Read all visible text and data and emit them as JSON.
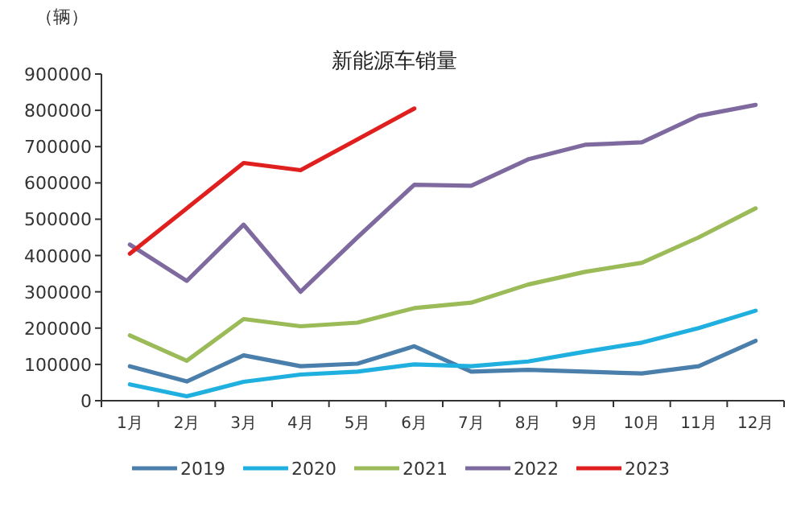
{
  "chart_data": {
    "type": "line",
    "title": "新能源车销量",
    "ylabel": "（辆）",
    "categories": [
      "1月",
      "2月",
      "3月",
      "4月",
      "5月",
      "6月",
      "7月",
      "8月",
      "9月",
      "10月",
      "11月",
      "12月"
    ],
    "series": [
      {
        "name": "2019",
        "color": "#4a7eab",
        "values": [
          95000,
          53000,
          125000,
          95000,
          102000,
          150000,
          80000,
          85000,
          80000,
          75000,
          95000,
          165000
        ]
      },
      {
        "name": "2020",
        "color": "#1fb0e0",
        "values": [
          45000,
          12000,
          52000,
          72000,
          80000,
          100000,
          95000,
          108000,
          135000,
          160000,
          200000,
          248000
        ]
      },
      {
        "name": "2021",
        "color": "#9bbb59",
        "values": [
          180000,
          110000,
          225000,
          205000,
          215000,
          255000,
          270000,
          320000,
          355000,
          380000,
          450000,
          530000
        ]
      },
      {
        "name": "2022",
        "color": "#7f6a9f",
        "values": [
          430000,
          330000,
          485000,
          300000,
          450000,
          595000,
          592000,
          665000,
          705000,
          712000,
          785000,
          815000
        ]
      },
      {
        "name": "2023",
        "color": "#e0201f",
        "values": [
          405000,
          530000,
          655000,
          635000,
          720000,
          805000,
          null,
          null,
          null,
          null,
          null,
          null
        ]
      }
    ],
    "ylim": [
      0,
      900000
    ],
    "yticks": [
      0,
      100000,
      200000,
      300000,
      400000,
      500000,
      600000,
      700000,
      800000,
      900000
    ],
    "grid": false,
    "legend": "bottom",
    "marker": "none",
    "line_style": "solid"
  }
}
